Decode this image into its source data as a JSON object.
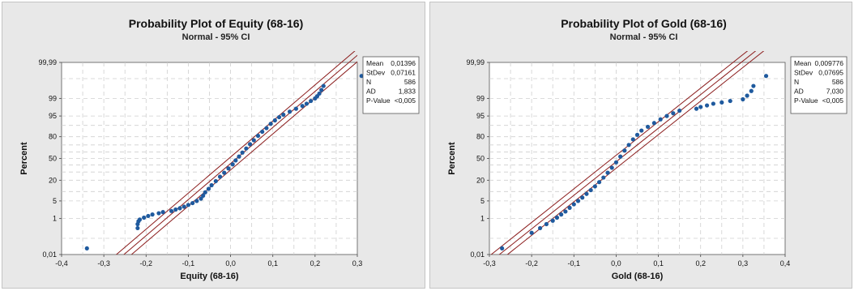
{
  "chart_data": [
    {
      "type": "scatter",
      "title": "Probability Plot of Equity (68-16)",
      "subtitle": "Normal - 95% CI",
      "xlabel": "Equity (68-16)",
      "ylabel": "Percent",
      "xlim": [
        -0.4,
        0.3
      ],
      "x_ticks": [
        "-0,4",
        "-0,3",
        "-0,2",
        "-0,1",
        "0,0",
        "0,1",
        "0,2",
        "0,3"
      ],
      "x_tick_values": [
        -0.4,
        -0.3,
        -0.2,
        -0.1,
        0.0,
        0.1,
        0.2,
        0.3
      ],
      "y_ticks": [
        "0,01",
        "1",
        "5",
        "20",
        "50",
        "80",
        "95",
        "99",
        "99,99"
      ],
      "y_tick_values": [
        0.01,
        1,
        5,
        20,
        50,
        80,
        95,
        99,
        99.99
      ],
      "y_minor_values": [
        0.1,
        10,
        30,
        40,
        60,
        70,
        90,
        99.9
      ],
      "ylim": [
        0.01,
        99.99
      ],
      "y_scale": "normal-probability",
      "grid": true,
      "legend": "stats box top-right",
      "stats": {
        "labels": [
          "Mean",
          "StDev",
          "N",
          "AD",
          "P-Value"
        ],
        "values": [
          "0,01396",
          "0,07161",
          "586",
          "1,833",
          "<0,005"
        ]
      },
      "fit": {
        "mean": 0.01396,
        "stdev": 0.07161,
        "n": 586,
        "ci_z": 0.25
      },
      "sample_points": [
        [
          -0.34,
          0.025
        ],
        [
          -0.22,
          0.35
        ],
        [
          -0.22,
          0.55
        ],
        [
          -0.218,
          0.75
        ],
        [
          -0.215,
          0.9
        ],
        [
          -0.205,
          1.1
        ],
        [
          -0.195,
          1.3
        ],
        [
          -0.185,
          1.5
        ],
        [
          -0.17,
          1.7
        ],
        [
          -0.16,
          1.9
        ],
        [
          -0.14,
          2.1
        ],
        [
          -0.13,
          2.4
        ],
        [
          -0.12,
          2.7
        ],
        [
          -0.11,
          3.1
        ],
        [
          -0.1,
          3.6
        ],
        [
          -0.09,
          4.2
        ],
        [
          -0.08,
          5.0
        ],
        [
          -0.07,
          6.0
        ],
        [
          -0.065,
          7.5
        ],
        [
          -0.06,
          9.5
        ],
        [
          -0.052,
          12
        ],
        [
          -0.045,
          15
        ],
        [
          -0.035,
          19
        ],
        [
          -0.025,
          24
        ],
        [
          -0.015,
          29
        ],
        [
          -0.005,
          35
        ],
        [
          0.005,
          41
        ],
        [
          0.012,
          47
        ],
        [
          0.02,
          53
        ],
        [
          0.028,
          59
        ],
        [
          0.037,
          65
        ],
        [
          0.046,
          71
        ],
        [
          0.055,
          76
        ],
        [
          0.065,
          81
        ],
        [
          0.075,
          85
        ],
        [
          0.085,
          88
        ],
        [
          0.095,
          91
        ],
        [
          0.105,
          93
        ],
        [
          0.115,
          94.5
        ],
        [
          0.125,
          95.5
        ],
        [
          0.14,
          96.5
        ],
        [
          0.155,
          97.3
        ],
        [
          0.17,
          97.9
        ],
        [
          0.18,
          98.3
        ],
        [
          0.19,
          98.7
        ],
        [
          0.2,
          99.0
        ],
        [
          0.205,
          99.2
        ],
        [
          0.21,
          99.4
        ],
        [
          0.215,
          99.6
        ],
        [
          0.22,
          99.75
        ],
        [
          0.31,
          99.93
        ]
      ]
    },
    {
      "type": "scatter",
      "title": "Probability Plot of Gold (68-16)",
      "subtitle": "Normal - 95% CI",
      "xlabel": "Gold (68-16)",
      "ylabel": "Percent",
      "xlim": [
        -0.3,
        0.4
      ],
      "x_ticks": [
        "-0,3",
        "-0,2",
        "-0,1",
        "0,0",
        "0,1",
        "0,2",
        "0,3",
        "0,4"
      ],
      "x_tick_values": [
        -0.3,
        -0.2,
        -0.1,
        0.0,
        0.1,
        0.2,
        0.3,
        0.4
      ],
      "y_ticks": [
        "0,01",
        "1",
        "5",
        "20",
        "50",
        "80",
        "95",
        "99",
        "99,99"
      ],
      "y_tick_values": [
        0.01,
        1,
        5,
        20,
        50,
        80,
        95,
        99,
        99.99
      ],
      "y_minor_values": [
        0.1,
        10,
        30,
        40,
        60,
        70,
        90,
        99.9
      ],
      "ylim": [
        0.01,
        99.99
      ],
      "y_scale": "normal-probability",
      "grid": true,
      "legend": "stats box top-right",
      "stats": {
        "labels": [
          "Mean",
          "StDev",
          "N",
          "AD",
          "P-Value"
        ],
        "values": [
          "0,009776",
          "0,07695",
          "586",
          "7,030",
          "<0,005"
        ]
      },
      "fit": {
        "mean": 0.009776,
        "stdev": 0.07695,
        "n": 586,
        "ci_z": 0.25
      },
      "sample_points": [
        [
          -0.27,
          0.025
        ],
        [
          -0.2,
          0.2
        ],
        [
          -0.18,
          0.35
        ],
        [
          -0.165,
          0.55
        ],
        [
          -0.15,
          0.8
        ],
        [
          -0.14,
          1.1
        ],
        [
          -0.13,
          1.5
        ],
        [
          -0.12,
          2.0
        ],
        [
          -0.11,
          2.8
        ],
        [
          -0.1,
          3.8
        ],
        [
          -0.09,
          5.0
        ],
        [
          -0.08,
          6.5
        ],
        [
          -0.07,
          8.5
        ],
        [
          -0.06,
          11
        ],
        [
          -0.05,
          14
        ],
        [
          -0.04,
          18
        ],
        [
          -0.03,
          23
        ],
        [
          -0.02,
          29
        ],
        [
          -0.01,
          36
        ],
        [
          0.0,
          44
        ],
        [
          0.01,
          53
        ],
        [
          0.02,
          62
        ],
        [
          0.03,
          70
        ],
        [
          0.04,
          77
        ],
        [
          0.05,
          82
        ],
        [
          0.06,
          86
        ],
        [
          0.075,
          89
        ],
        [
          0.09,
          91.5
        ],
        [
          0.105,
          93.5
        ],
        [
          0.12,
          95
        ],
        [
          0.135,
          96
        ],
        [
          0.15,
          96.8
        ],
        [
          0.19,
          97.3
        ],
        [
          0.2,
          97.7
        ],
        [
          0.215,
          98.0
        ],
        [
          0.23,
          98.3
        ],
        [
          0.25,
          98.5
        ],
        [
          0.27,
          98.7
        ],
        [
          0.3,
          98.9
        ],
        [
          0.31,
          99.25
        ],
        [
          0.32,
          99.55
        ],
        [
          0.325,
          99.75
        ],
        [
          0.355,
          99.93
        ]
      ]
    }
  ]
}
